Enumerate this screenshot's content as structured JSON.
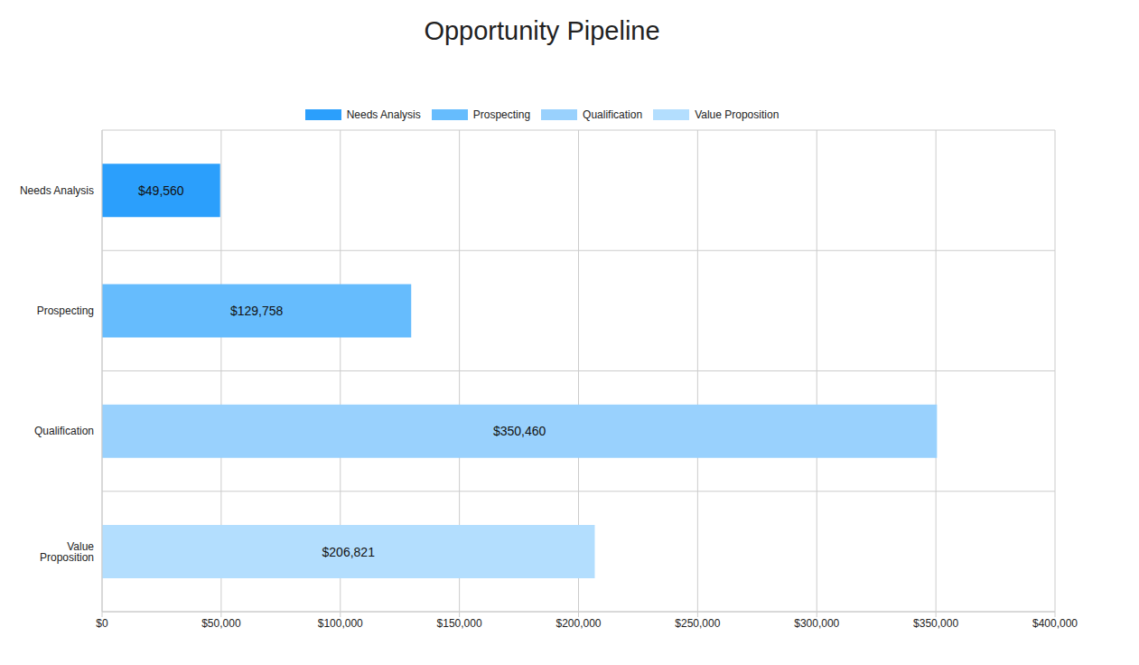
{
  "chart_data": {
    "type": "bar",
    "title": "Opportunity Pipeline",
    "orientation": "horizontal",
    "categories": [
      "Needs Analysis",
      "Prospecting",
      "Qualification",
      "Value Proposition"
    ],
    "values": [
      49560,
      129758,
      350460,
      206821
    ],
    "value_labels": [
      "$49,560",
      "$129,758",
      "$350,460",
      "$206,821"
    ],
    "colors": [
      "#2b9ffc",
      "#66bcfd",
      "#99d1fd",
      "#b3defe"
    ],
    "xlim": [
      0,
      400000
    ],
    "xticks": [
      {
        "value": 0,
        "label": "$0"
      },
      {
        "value": 50000,
        "label": "$50,000"
      },
      {
        "value": 100000,
        "label": "$100,000"
      },
      {
        "value": 150000,
        "label": "$150,000"
      },
      {
        "value": 200000,
        "label": "$200,000"
      },
      {
        "value": 250000,
        "label": "$250,000"
      },
      {
        "value": 300000,
        "label": "$300,000"
      },
      {
        "value": 350000,
        "label": "$350,000"
      },
      {
        "value": 400000,
        "label": "$400,000"
      }
    ],
    "grid": true,
    "legend": "top",
    "data_labels": true
  }
}
